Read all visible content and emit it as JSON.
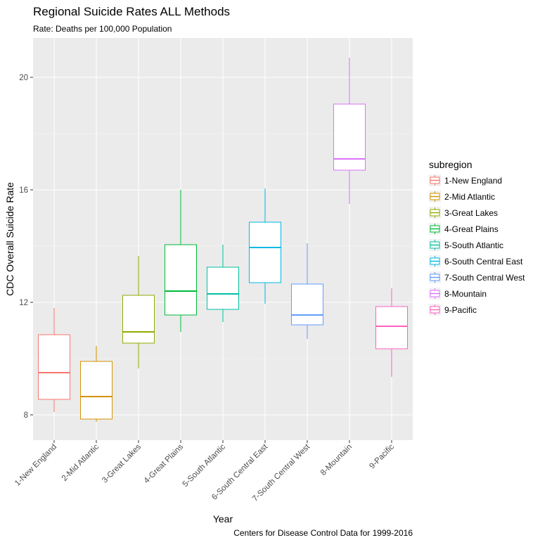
{
  "chart_data": {
    "type": "boxplot",
    "title": "Regional Suicide Rates ALL Methods",
    "subtitle": "Rate: Deaths per 100,000 Population",
    "xlabel": "Year",
    "ylabel": "CDC Overall Suicide Rate",
    "caption": "Centers for Disease Control Data for 1999-2016",
    "ylim": [
      7.1,
      21.4
    ],
    "yticks": [
      8,
      12,
      16,
      20
    ],
    "grid": true,
    "legend": {
      "title": "subregion",
      "position": "right"
    },
    "categories": [
      "1-New England",
      "2-Mid Atlantic",
      "3-Great Lakes",
      "4-Great Plains",
      "5-South Atlantic",
      "6-South Central East",
      "7-South Central West",
      "8-Mountain",
      "9-Pacific"
    ],
    "colors": [
      "#F8766D",
      "#D39200",
      "#93AA00",
      "#00BA38",
      "#00C19F",
      "#00B9E3",
      "#619CFF",
      "#DB72FB",
      "#FF61C3"
    ],
    "boxes": [
      {
        "name": "1-New England",
        "min": 8.1,
        "q1": 8.55,
        "median": 9.5,
        "q3": 10.85,
        "max": 11.8
      },
      {
        "name": "2-Mid Atlantic",
        "min": 7.75,
        "q1": 7.85,
        "median": 8.65,
        "q3": 9.9,
        "max": 10.45
      },
      {
        "name": "3-Great Lakes",
        "min": 9.65,
        "q1": 10.55,
        "median": 10.95,
        "q3": 12.25,
        "max": 13.65
      },
      {
        "name": "4-Great Plains",
        "min": 10.95,
        "q1": 11.55,
        "median": 12.4,
        "q3": 14.05,
        "max": 16.0
      },
      {
        "name": "5-South Atlantic",
        "min": 11.3,
        "q1": 11.75,
        "median": 12.3,
        "q3": 13.25,
        "max": 14.05
      },
      {
        "name": "6-South Central East",
        "min": 11.95,
        "q1": 12.7,
        "median": 13.95,
        "q3": 14.85,
        "max": 16.05
      },
      {
        "name": "7-South Central West",
        "min": 10.7,
        "q1": 11.2,
        "median": 11.55,
        "q3": 12.65,
        "max": 14.1
      },
      {
        "name": "8-Mountain",
        "min": 15.5,
        "q1": 16.7,
        "median": 17.1,
        "q3": 19.05,
        "max": 20.7
      },
      {
        "name": "9-Pacific",
        "min": 9.35,
        "q1": 10.35,
        "median": 11.15,
        "q3": 11.85,
        "max": 12.5
      }
    ]
  }
}
